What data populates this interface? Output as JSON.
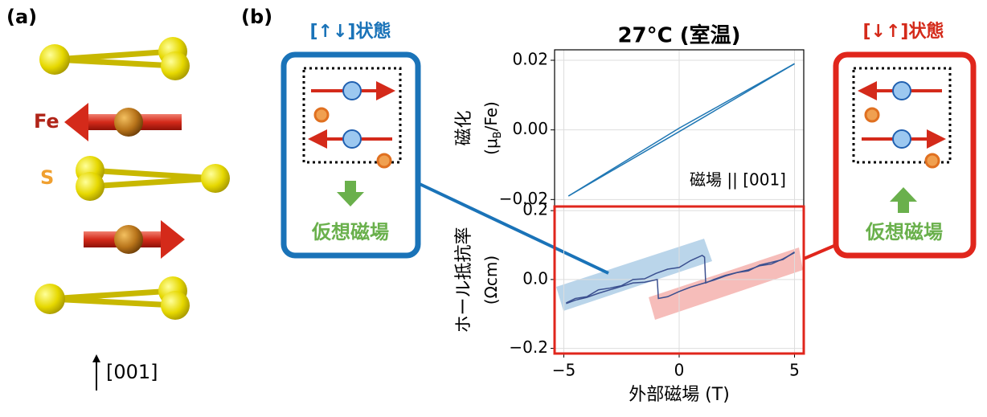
{
  "panel_a": {
    "label": "(a)",
    "fe_label": "Fe",
    "s_label": "S",
    "axis_label": "[001]"
  },
  "panel_b": {
    "label": "(b)",
    "left_state": {
      "title": "[↑↓]状態",
      "field_label": "仮想磁場"
    },
    "right_state": {
      "title": "[↓↑]状態",
      "field_label": "仮想磁場"
    }
  },
  "chart_data": [
    {
      "type": "line",
      "title": "27°C (室温)",
      "ylabel": "磁化",
      "ylabel_unit": [
        "(μ",
        "B",
        "/Fe)"
      ],
      "annotation": "磁場 || [001]",
      "xlim": [
        -5.4,
        5.4
      ],
      "ylim": [
        -0.022,
        0.023
      ],
      "yticks": [
        {
          "value": -0.02,
          "label": "−0.02"
        },
        {
          "value": 0,
          "label": "0.00"
        },
        0.02
      ],
      "grid": true,
      "series": [
        {
          "color": "#1f77b4",
          "x": [
            -4.8,
            0,
            5
          ],
          "values": [
            -0.019,
            -0.0005,
            0.019
          ]
        },
        {
          "color": "#1f77b4",
          "x": [
            5,
            0,
            -4.8
          ],
          "values": [
            0.019,
            0.0005,
            -0.019
          ]
        }
      ]
    },
    {
      "type": "line",
      "xlabel": "外部磁場 (T)",
      "ylabel": "ホール抵抗率",
      "ylabel_unit": [
        "(Ωcm)"
      ],
      "xlim": [
        -5.4,
        5.4
      ],
      "ylim": [
        -0.215,
        0.212
      ],
      "xticks": [
        {
          "value": -5,
          "label": "−5"
        },
        0,
        5
      ],
      "yticks": [
        {
          "value": -0.2,
          "label": "−0.2"
        },
        {
          "value": 0,
          "label": "0.0"
        },
        0.2
      ],
      "grid": true,
      "series": [
        {
          "color": "#3a4f8f",
          "x": [
            -4.9,
            -4.5,
            -4,
            -3.5,
            -3,
            -2.5,
            -2,
            -1.5,
            -1,
            -0.5,
            0,
            0.5,
            1,
            1.1,
            1.15,
            1.5,
            2,
            2.5,
            3,
            3.5,
            4,
            4.5,
            5
          ],
          "values": [
            -0.068,
            -0.055,
            -0.05,
            -0.03,
            -0.025,
            -0.018,
            0.0,
            0.002,
            0.018,
            0.03,
            0.035,
            0.055,
            0.07,
            0.065,
            -0.01,
            0.0,
            0.012,
            0.02,
            0.025,
            0.042,
            0.05,
            0.058,
            0.08
          ]
        },
        {
          "color": "#3a4f8f",
          "x": [
            5,
            4.5,
            4,
            3.5,
            3,
            2.5,
            2,
            1.5,
            1,
            0.5,
            0,
            -0.5,
            -0.9,
            -0.95,
            -1.5,
            -2,
            -2.5,
            -3,
            -3.5,
            -4,
            -4.5,
            -4.9
          ],
          "values": [
            0.078,
            0.06,
            0.045,
            0.04,
            0.028,
            0.02,
            0.01,
            -0.002,
            -0.012,
            -0.022,
            -0.035,
            -0.05,
            -0.055,
            0.0,
            -0.008,
            -0.01,
            -0.02,
            -0.03,
            -0.04,
            -0.052,
            -0.06,
            -0.07
          ]
        }
      ]
    }
  ]
}
